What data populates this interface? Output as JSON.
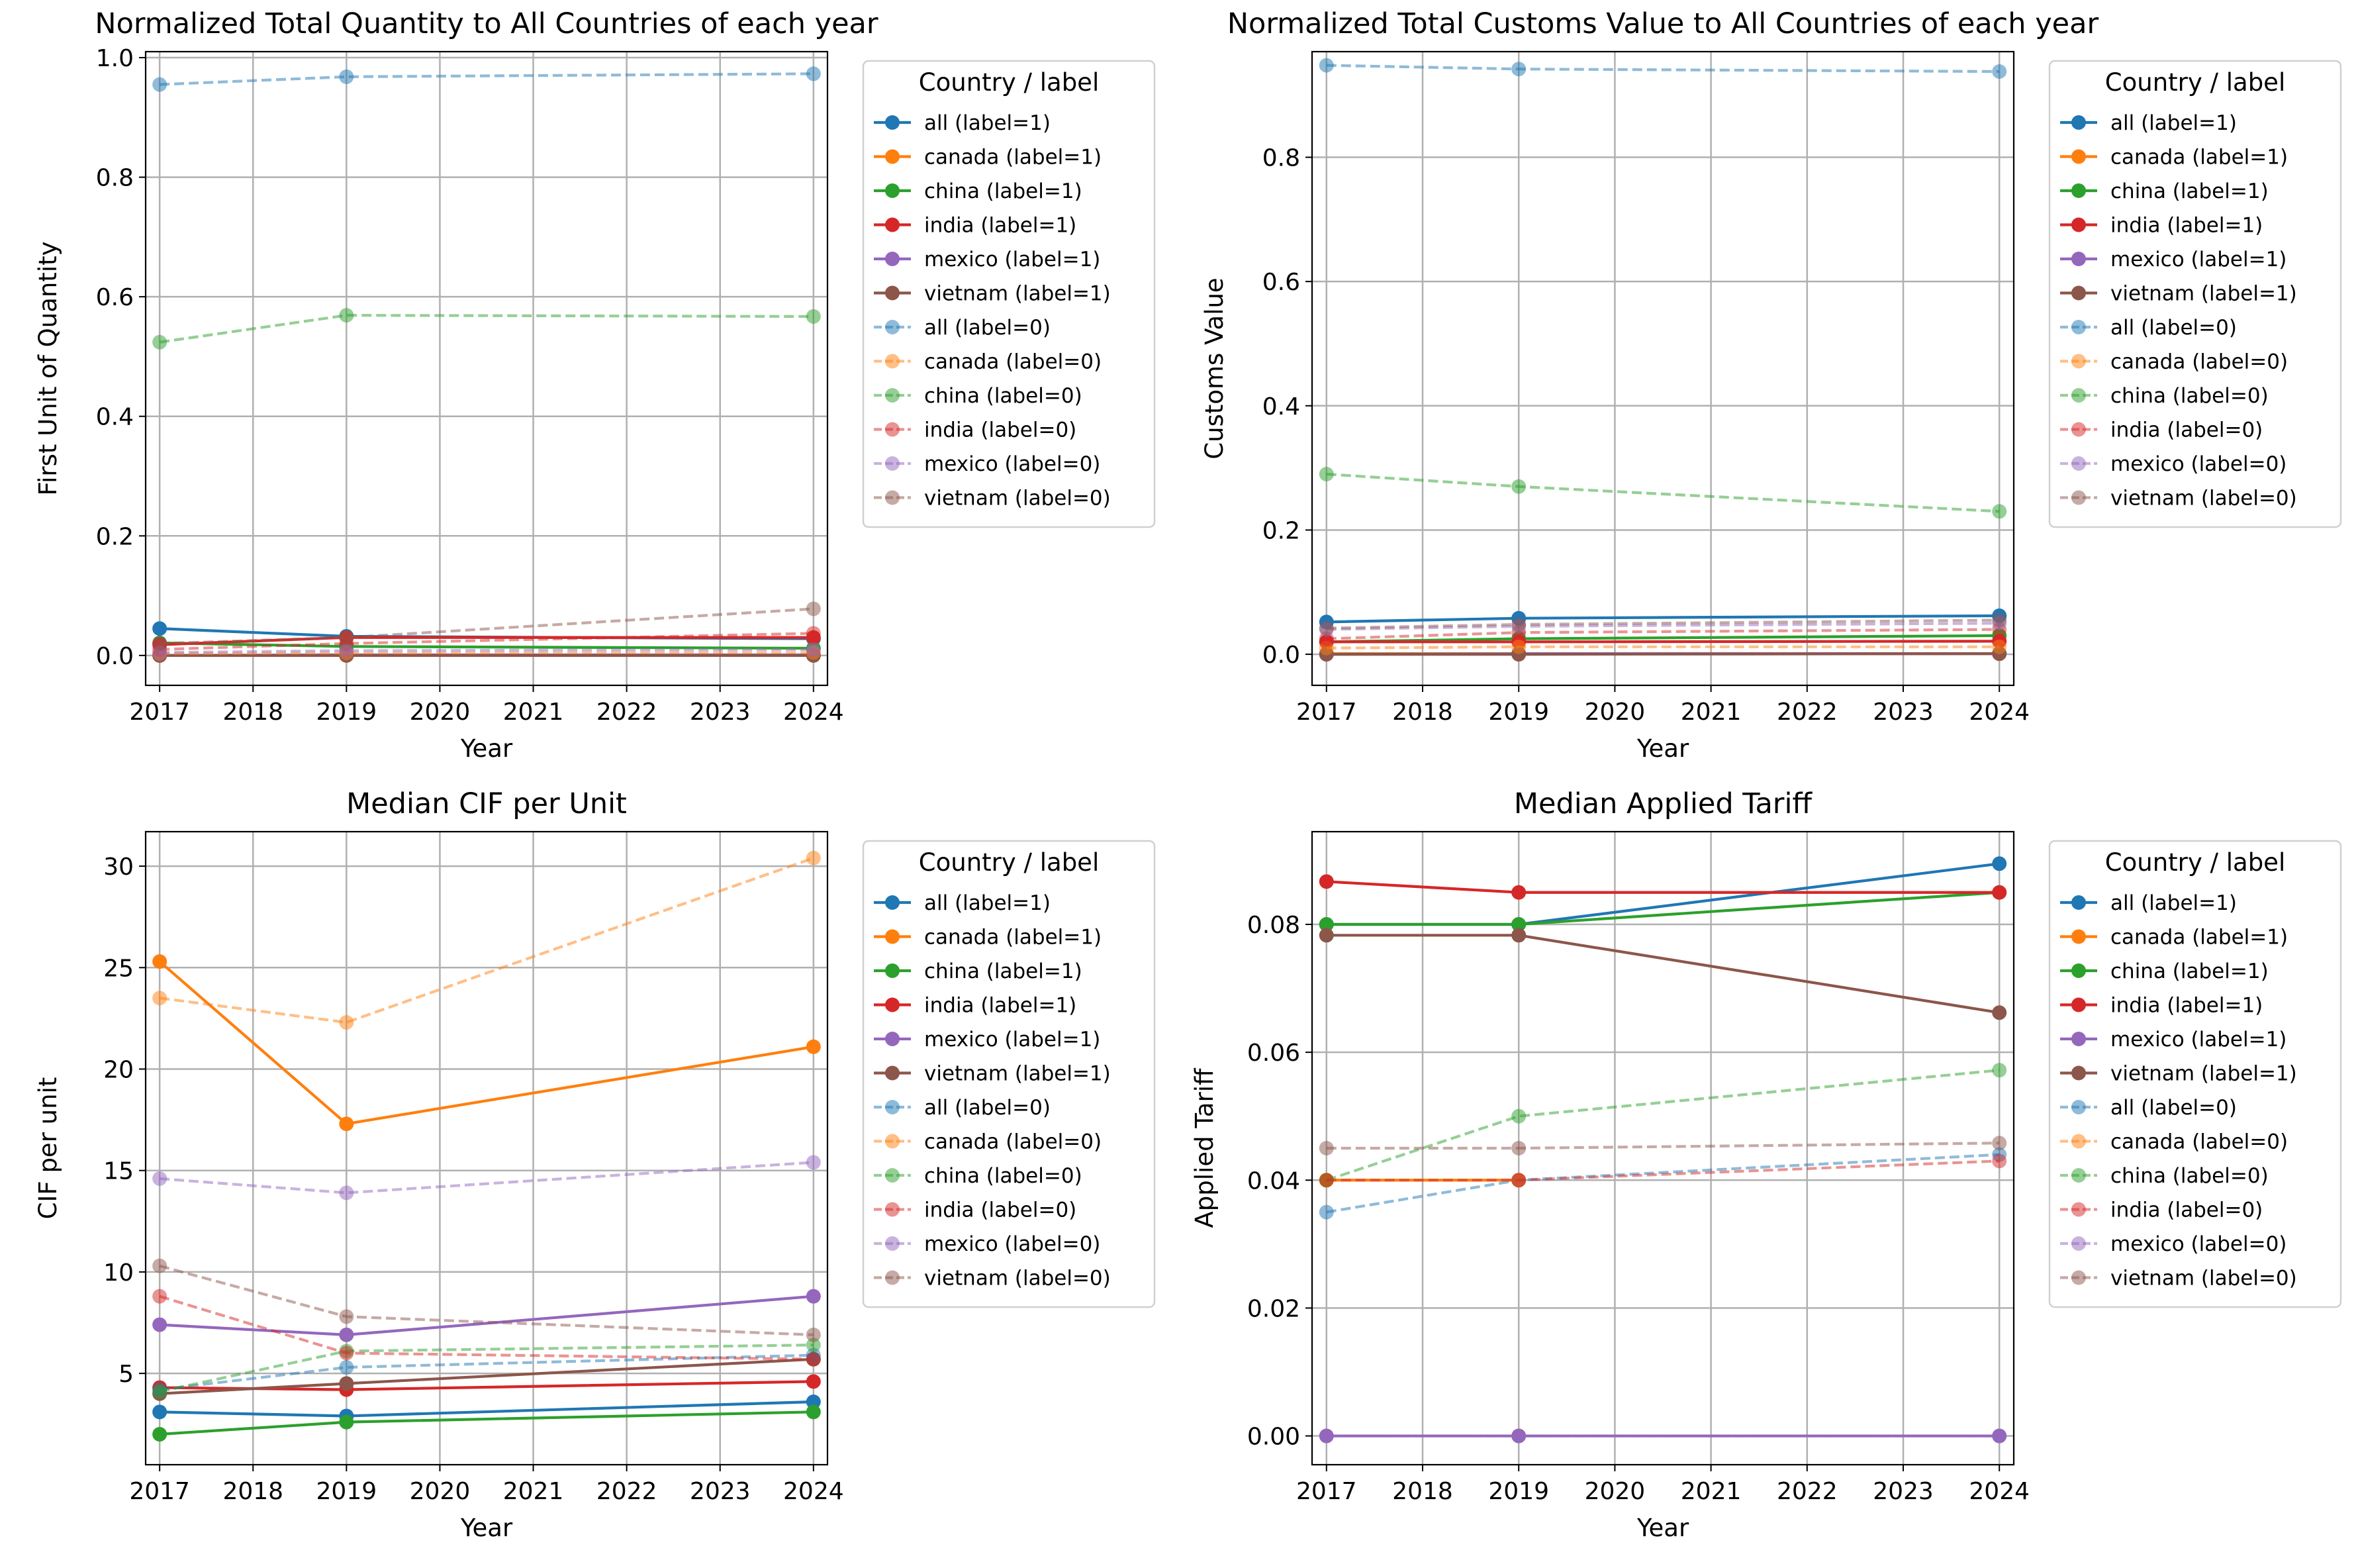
{
  "chart_data": [
    {
      "type": "line",
      "title": "Normalized Total Quantity to All Countries of each year",
      "xlabel": "Year",
      "ylabel": "First Unit of Quantity",
      "x": [
        2017,
        2019,
        2024
      ],
      "xlim": [
        2016.85,
        2024.15
      ],
      "ylim": [
        -0.05,
        1.01
      ],
      "xticks": [
        "2017",
        "2018",
        "2019",
        "2020",
        "2021",
        "2022",
        "2023",
        "2024"
      ],
      "yticks": [
        "0.0",
        "0.2",
        "0.4",
        "0.6",
        "0.8",
        "1.0"
      ],
      "grid": true,
      "legend_title": "Country / label",
      "legend_position": "outside-right",
      "series": [
        {
          "name": "all (label=1)",
          "color": "#1f77b4",
          "style": "solid",
          "values": [
            0.045,
            0.032,
            0.028
          ]
        },
        {
          "name": "canada (label=1)",
          "color": "#ff7f0e",
          "style": "solid",
          "values": [
            0.0,
            0.0,
            0.0
          ]
        },
        {
          "name": "china (label=1)",
          "color": "#2ca02c",
          "style": "solid",
          "values": [
            0.021,
            0.015,
            0.012
          ]
        },
        {
          "name": "india (label=1)",
          "color": "#d62728",
          "style": "solid",
          "values": [
            0.018,
            0.03,
            0.03
          ]
        },
        {
          "name": "mexico (label=1)",
          "color": "#9467bd",
          "style": "solid",
          "values": [
            0.0,
            0.001,
            0.001
          ]
        },
        {
          "name": "vietnam (label=1)",
          "color": "#8c564b",
          "style": "solid",
          "values": [
            0.0,
            0.0,
            0.0
          ]
        },
        {
          "name": "all (label=0)",
          "color": "#1f77b4",
          "style": "dashed",
          "values": [
            0.955,
            0.968,
            0.973
          ]
        },
        {
          "name": "canada (label=0)",
          "color": "#ff7f0e",
          "style": "dashed",
          "values": [
            0.003,
            0.004,
            0.005
          ]
        },
        {
          "name": "china (label=0)",
          "color": "#2ca02c",
          "style": "dashed",
          "values": [
            0.524,
            0.569,
            0.567
          ]
        },
        {
          "name": "india (label=0)",
          "color": "#d62728",
          "style": "dashed",
          "values": [
            0.01,
            0.02,
            0.037
          ]
        },
        {
          "name": "mexico (label=0)",
          "color": "#9467bd",
          "style": "dashed",
          "values": [
            0.005,
            0.008,
            0.01
          ]
        },
        {
          "name": "vietnam (label=0)",
          "color": "#8c564b",
          "style": "dashed",
          "values": [
            0.02,
            0.03,
            0.078
          ]
        }
      ]
    },
    {
      "type": "line",
      "title": "Normalized Total Customs Value to All Countries of each year",
      "xlabel": "Year",
      "ylabel": "Customs Value",
      "x": [
        2017,
        2019,
        2024
      ],
      "xlim": [
        2016.85,
        2024.15
      ],
      "ylim": [
        -0.05,
        0.97
      ],
      "xticks": [
        "2017",
        "2018",
        "2019",
        "2020",
        "2021",
        "2022",
        "2023",
        "2024"
      ],
      "yticks": [
        "0.0",
        "0.2",
        "0.4",
        "0.6",
        "0.8"
      ],
      "grid": true,
      "legend_title": "Country / label",
      "legend_position": "outside-right",
      "series": [
        {
          "name": "all (label=1)",
          "color": "#1f77b4",
          "style": "solid",
          "values": [
            0.052,
            0.058,
            0.062
          ]
        },
        {
          "name": "canada (label=1)",
          "color": "#ff7f0e",
          "style": "solid",
          "values": [
            0.001,
            0.001,
            0.001
          ]
        },
        {
          "name": "china (label=1)",
          "color": "#2ca02c",
          "style": "solid",
          "values": [
            0.02,
            0.025,
            0.03
          ]
        },
        {
          "name": "india (label=1)",
          "color": "#d62728",
          "style": "solid",
          "values": [
            0.02,
            0.02,
            0.021
          ]
        },
        {
          "name": "mexico (label=1)",
          "color": "#9467bd",
          "style": "solid",
          "values": [
            0.0,
            0.001,
            0.001
          ]
        },
        {
          "name": "vietnam (label=1)",
          "color": "#8c564b",
          "style": "solid",
          "values": [
            0.0,
            0.0,
            0.001
          ]
        },
        {
          "name": "all (label=0)",
          "color": "#1f77b4",
          "style": "dashed",
          "values": [
            0.948,
            0.942,
            0.938
          ]
        },
        {
          "name": "canada (label=0)",
          "color": "#ff7f0e",
          "style": "dashed",
          "values": [
            0.01,
            0.012,
            0.012
          ]
        },
        {
          "name": "china (label=0)",
          "color": "#2ca02c",
          "style": "dashed",
          "values": [
            0.29,
            0.27,
            0.23
          ]
        },
        {
          "name": "india (label=0)",
          "color": "#d62728",
          "style": "dashed",
          "values": [
            0.025,
            0.035,
            0.04
          ]
        },
        {
          "name": "mexico (label=0)",
          "color": "#9467bd",
          "style": "dashed",
          "values": [
            0.04,
            0.045,
            0.05
          ]
        },
        {
          "name": "vietnam (label=0)",
          "color": "#8c564b",
          "style": "dashed",
          "values": [
            0.042,
            0.048,
            0.055
          ]
        }
      ]
    },
    {
      "type": "line",
      "title": "Median CIF per Unit",
      "xlabel": "Year",
      "ylabel": "CIF per unit",
      "x": [
        2017,
        2019,
        2024
      ],
      "xlim": [
        2016.85,
        2024.15
      ],
      "ylim": [
        0.5,
        31.7
      ],
      "xticks": [
        "2017",
        "2018",
        "2019",
        "2020",
        "2021",
        "2022",
        "2023",
        "2024"
      ],
      "yticks": [
        "5",
        "10",
        "15",
        "20",
        "25",
        "30"
      ],
      "grid": true,
      "legend_title": "Country / label",
      "legend_position": "outside-right",
      "series": [
        {
          "name": "all (label=1)",
          "color": "#1f77b4",
          "style": "solid",
          "values": [
            3.1,
            2.9,
            3.6
          ]
        },
        {
          "name": "canada (label=1)",
          "color": "#ff7f0e",
          "style": "solid",
          "values": [
            25.3,
            17.3,
            21.1
          ]
        },
        {
          "name": "china (label=1)",
          "color": "#2ca02c",
          "style": "solid",
          "values": [
            2.0,
            2.6,
            3.1
          ]
        },
        {
          "name": "india (label=1)",
          "color": "#d62728",
          "style": "solid",
          "values": [
            4.3,
            4.2,
            4.6
          ]
        },
        {
          "name": "mexico (label=1)",
          "color": "#9467bd",
          "style": "solid",
          "values": [
            7.4,
            6.9,
            8.8
          ]
        },
        {
          "name": "vietnam (label=1)",
          "color": "#8c564b",
          "style": "solid",
          "values": [
            4.0,
            4.5,
            5.7
          ]
        },
        {
          "name": "all (label=0)",
          "color": "#1f77b4",
          "style": "dashed",
          "values": [
            4.2,
            5.3,
            5.9
          ]
        },
        {
          "name": "canada (label=0)",
          "color": "#ff7f0e",
          "style": "dashed",
          "values": [
            23.5,
            22.3,
            30.4
          ]
        },
        {
          "name": "china (label=0)",
          "color": "#2ca02c",
          "style": "dashed",
          "values": [
            4.1,
            6.1,
            6.4
          ]
        },
        {
          "name": "india (label=0)",
          "color": "#d62728",
          "style": "dashed",
          "values": [
            8.8,
            6.0,
            5.7
          ]
        },
        {
          "name": "mexico (label=0)",
          "color": "#9467bd",
          "style": "dashed",
          "values": [
            14.6,
            13.9,
            15.4
          ]
        },
        {
          "name": "vietnam (label=0)",
          "color": "#8c564b",
          "style": "dashed",
          "values": [
            10.3,
            7.8,
            6.9
          ]
        }
      ]
    },
    {
      "type": "line",
      "title": "Median Applied Tariff",
      "xlabel": "Year",
      "ylabel": "Applied Tariff",
      "x": [
        2017,
        2019,
        2024
      ],
      "xlim": [
        2016.85,
        2024.15
      ],
      "ylim": [
        -0.0045,
        0.0945
      ],
      "xticks": [
        "2017",
        "2018",
        "2019",
        "2020",
        "2021",
        "2022",
        "2023",
        "2024"
      ],
      "yticks": [
        "0.00",
        "0.02",
        "0.04",
        "0.06",
        "0.08"
      ],
      "grid": true,
      "legend_title": "Country / label",
      "legend_position": "outside-right",
      "series": [
        {
          "name": "all (label=1)",
          "color": "#1f77b4",
          "style": "solid",
          "values": [
            0.08,
            0.08,
            0.0895
          ]
        },
        {
          "name": "canada (label=1)",
          "color": "#ff7f0e",
          "style": "solid",
          "values": [
            0.04,
            0.04,
            null
          ]
        },
        {
          "name": "china (label=1)",
          "color": "#2ca02c",
          "style": "solid",
          "values": [
            0.08,
            0.08,
            0.085
          ]
        },
        {
          "name": "india (label=1)",
          "color": "#d62728",
          "style": "solid",
          "values": [
            0.0867,
            0.085,
            0.085
          ]
        },
        {
          "name": "mexico (label=1)",
          "color": "#9467bd",
          "style": "solid",
          "values": [
            0.0,
            0.0,
            0.0
          ]
        },
        {
          "name": "vietnam (label=1)",
          "color": "#8c564b",
          "style": "solid",
          "values": [
            0.0783,
            0.0783,
            0.0662
          ]
        },
        {
          "name": "all (label=0)",
          "color": "#1f77b4",
          "style": "dashed",
          "values": [
            0.035,
            0.04,
            0.044
          ]
        },
        {
          "name": "canada (label=0)",
          "color": "#ff7f0e",
          "style": "dashed",
          "values": [
            0.04,
            0.04,
            null
          ]
        },
        {
          "name": "china (label=0)",
          "color": "#2ca02c",
          "style": "dashed",
          "values": [
            0.04,
            0.05,
            0.0572
          ]
        },
        {
          "name": "india (label=0)",
          "color": "#d62728",
          "style": "dashed",
          "values": [
            0.04,
            0.04,
            0.043
          ]
        },
        {
          "name": "mexico (label=0)",
          "color": "#9467bd",
          "style": "dashed",
          "values": [
            0.0,
            0.0,
            0.0
          ]
        },
        {
          "name": "vietnam (label=0)",
          "color": "#8c564b",
          "style": "dashed",
          "values": [
            0.045,
            0.045,
            0.0458
          ]
        }
      ]
    }
  ]
}
